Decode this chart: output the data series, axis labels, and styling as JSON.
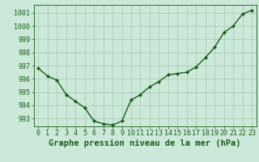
{
  "x": [
    0,
    1,
    2,
    3,
    4,
    5,
    6,
    7,
    8,
    9,
    10,
    11,
    12,
    13,
    14,
    15,
    16,
    17,
    18,
    19,
    20,
    21,
    22,
    23
  ],
  "y": [
    996.8,
    996.2,
    995.9,
    994.8,
    994.3,
    993.8,
    992.8,
    992.6,
    992.5,
    992.8,
    994.4,
    994.8,
    995.4,
    995.8,
    996.3,
    996.4,
    996.5,
    996.9,
    997.6,
    998.4,
    999.5,
    1000.0,
    1000.9,
    1001.2
  ],
  "line_color": "#1a5e1a",
  "marker": "D",
  "marker_size": 2.2,
  "bg_color": "#cce8d8",
  "grid_color": "#a8c8b4",
  "text_color": "#1a5e1a",
  "ylim_min": 992.4,
  "ylim_max": 1001.6,
  "yticks": [
    993,
    994,
    995,
    996,
    997,
    998,
    999,
    1000,
    1001
  ],
  "xtick_labels": [
    "0",
    "1",
    "2",
    "3",
    "4",
    "5",
    "6",
    "7",
    "8",
    "9",
    "10",
    "11",
    "12",
    "13",
    "14",
    "15",
    "16",
    "17",
    "18",
    "19",
    "20",
    "21",
    "22",
    "23"
  ],
  "xlabel": "Graphe pression niveau de la mer (hPa)",
  "xlabel_fontsize": 7.5,
  "tick_fontsize": 6.0,
  "linewidth": 1.0
}
